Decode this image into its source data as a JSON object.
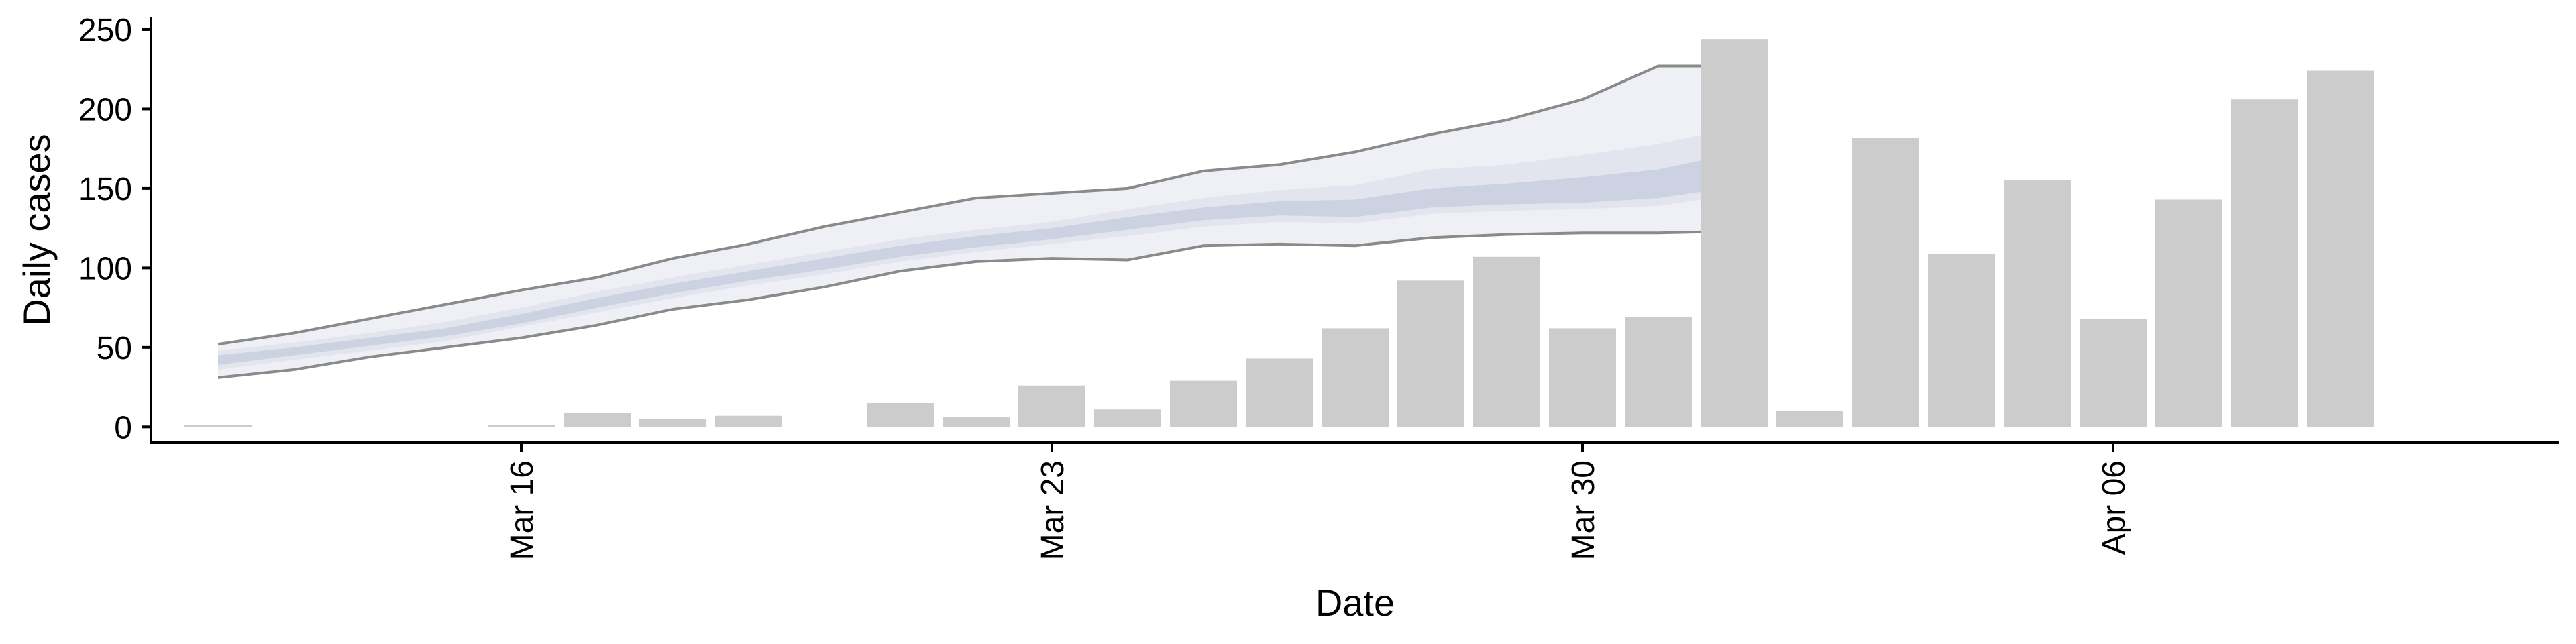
{
  "chart_data": {
    "type": "bar",
    "xlabel": "Date",
    "ylabel": "Daily cases",
    "ylim": [
      -10,
      258
    ],
    "xlim": [
      "2020-03-11",
      "2020-04-12"
    ],
    "x_ticks": [
      {
        "date": "2020-03-16",
        "label": "Mar 16"
      },
      {
        "date": "2020-03-23",
        "label": "Mar 23"
      },
      {
        "date": "2020-03-30",
        "label": "Mar 30"
      },
      {
        "date": "2020-04-06",
        "label": "Apr 06"
      }
    ],
    "y_ticks": [
      0,
      50,
      100,
      150,
      200,
      250
    ],
    "grid": false,
    "legend": "none",
    "colors": {
      "bars": "#cccccc",
      "band_outer": "#eef0f5",
      "band_mid": "#e3e5ee",
      "band_inner": "#cdd2e2",
      "band_lines": "#8a8a8a"
    },
    "bars": [
      {
        "date": "2020-03-12",
        "value": 1
      },
      {
        "date": "2020-03-13",
        "value": 0
      },
      {
        "date": "2020-03-14",
        "value": 0
      },
      {
        "date": "2020-03-15",
        "value": 0
      },
      {
        "date": "2020-03-16",
        "value": 1
      },
      {
        "date": "2020-03-17",
        "value": 9
      },
      {
        "date": "2020-03-18",
        "value": 5
      },
      {
        "date": "2020-03-19",
        "value": 7
      },
      {
        "date": "2020-03-20",
        "value": 0
      },
      {
        "date": "2020-03-21",
        "value": 15
      },
      {
        "date": "2020-03-22",
        "value": 6
      },
      {
        "date": "2020-03-23",
        "value": 26
      },
      {
        "date": "2020-03-24",
        "value": 11
      },
      {
        "date": "2020-03-25",
        "value": 29
      },
      {
        "date": "2020-03-26",
        "value": 43
      },
      {
        "date": "2020-03-27",
        "value": 62
      },
      {
        "date": "2020-03-28",
        "value": 92
      },
      {
        "date": "2020-03-29",
        "value": 107
      },
      {
        "date": "2020-03-30",
        "value": 62
      },
      {
        "date": "2020-03-31",
        "value": 69
      },
      {
        "date": "2020-04-01",
        "value": 244
      },
      {
        "date": "2020-04-02",
        "value": 10
      },
      {
        "date": "2020-04-03",
        "value": 182
      },
      {
        "date": "2020-04-04",
        "value": 109
      },
      {
        "date": "2020-04-05",
        "value": 155
      },
      {
        "date": "2020-04-06",
        "value": 68
      },
      {
        "date": "2020-04-07",
        "value": 143
      },
      {
        "date": "2020-04-08",
        "value": 206
      },
      {
        "date": "2020-04-09",
        "value": 224
      }
    ],
    "band": {
      "dates": [
        "2020-03-12",
        "2020-03-13",
        "2020-03-14",
        "2020-03-15",
        "2020-03-16",
        "2020-03-17",
        "2020-03-18",
        "2020-03-19",
        "2020-03-20",
        "2020-03-21",
        "2020-03-22",
        "2020-03-23",
        "2020-03-24",
        "2020-03-25",
        "2020-03-26",
        "2020-03-27",
        "2020-03-28",
        "2020-03-29",
        "2020-03-30",
        "2020-03-31",
        "2020-04-01"
      ],
      "lower_90": [
        31,
        36,
        44,
        50,
        56,
        64,
        74,
        80,
        88,
        98,
        104,
        106,
        105,
        114,
        115,
        114,
        119,
        121,
        122,
        122,
        123
      ],
      "lower_50": [
        36,
        42,
        48,
        54,
        63,
        72,
        81,
        89,
        96,
        104,
        110,
        115,
        120,
        126,
        129,
        128,
        134,
        136,
        137,
        139,
        146
      ],
      "lower_20": [
        39,
        45,
        51,
        57,
        65,
        75,
        84,
        92,
        99,
        107,
        113,
        118,
        124,
        130,
        133,
        132,
        138,
        140,
        141,
        144,
        151
      ],
      "upper_20": [
        45,
        50,
        56,
        62,
        71,
        81,
        90,
        98,
        106,
        114,
        120,
        125,
        132,
        138,
        142,
        143,
        150,
        153,
        157,
        162,
        172
      ],
      "upper_50": [
        48,
        53,
        59,
        66,
        75,
        85,
        94,
        102,
        110,
        118,
        124,
        129,
        137,
        144,
        149,
        152,
        162,
        165,
        171,
        178,
        188
      ],
      "upper_90": [
        52,
        59,
        68,
        77,
        86,
        94,
        106,
        115,
        126,
        135,
        144,
        147,
        150,
        161,
        165,
        173,
        184,
        193,
        206,
        227,
        227
      ]
    }
  }
}
